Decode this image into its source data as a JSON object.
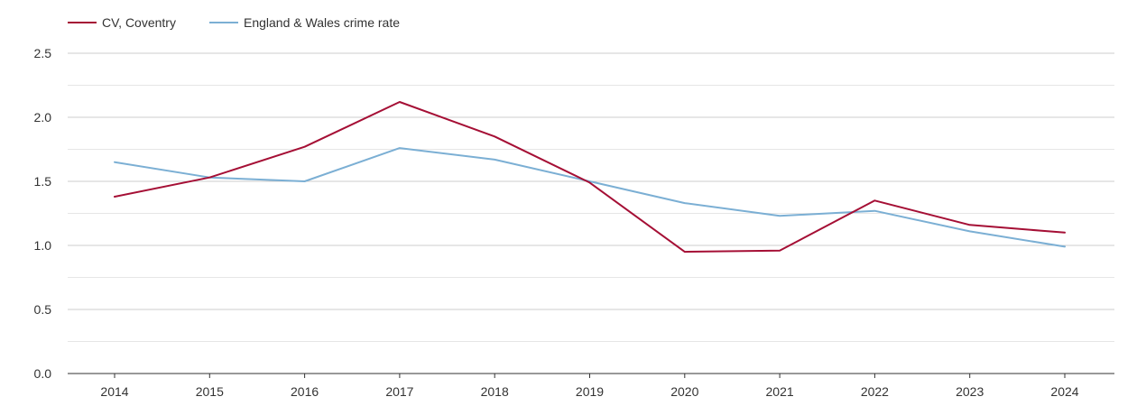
{
  "chart_data": {
    "type": "line",
    "x": [
      "2014",
      "2015",
      "2016",
      "2017",
      "2018",
      "2019",
      "2020",
      "2021",
      "2022",
      "2023",
      "2024"
    ],
    "series": [
      {
        "name": "CV, Coventry",
        "color": "#a50f35",
        "values": [
          1.38,
          1.53,
          1.77,
          2.12,
          1.85,
          1.49,
          0.95,
          0.96,
          1.35,
          1.16,
          1.1
        ]
      },
      {
        "name": "England & Wales crime rate",
        "color": "#7bafd4",
        "values": [
          1.65,
          1.53,
          1.5,
          1.76,
          1.67,
          1.5,
          1.33,
          1.23,
          1.27,
          1.11,
          0.99
        ]
      }
    ],
    "ylim": [
      0,
      2.5
    ],
    "y_ticks": [
      "0.0",
      "0.5",
      "1.0",
      "1.5",
      "2.0",
      "2.5"
    ],
    "y_tick_values": [
      0,
      0.5,
      1.0,
      1.5,
      2.0,
      2.5
    ],
    "grid": true,
    "legend_position": "top-left",
    "colors": {
      "major_grid": "#cccccc",
      "minor_grid": "#e6e6e6",
      "axis": "#333333",
      "text": "#333333"
    }
  }
}
